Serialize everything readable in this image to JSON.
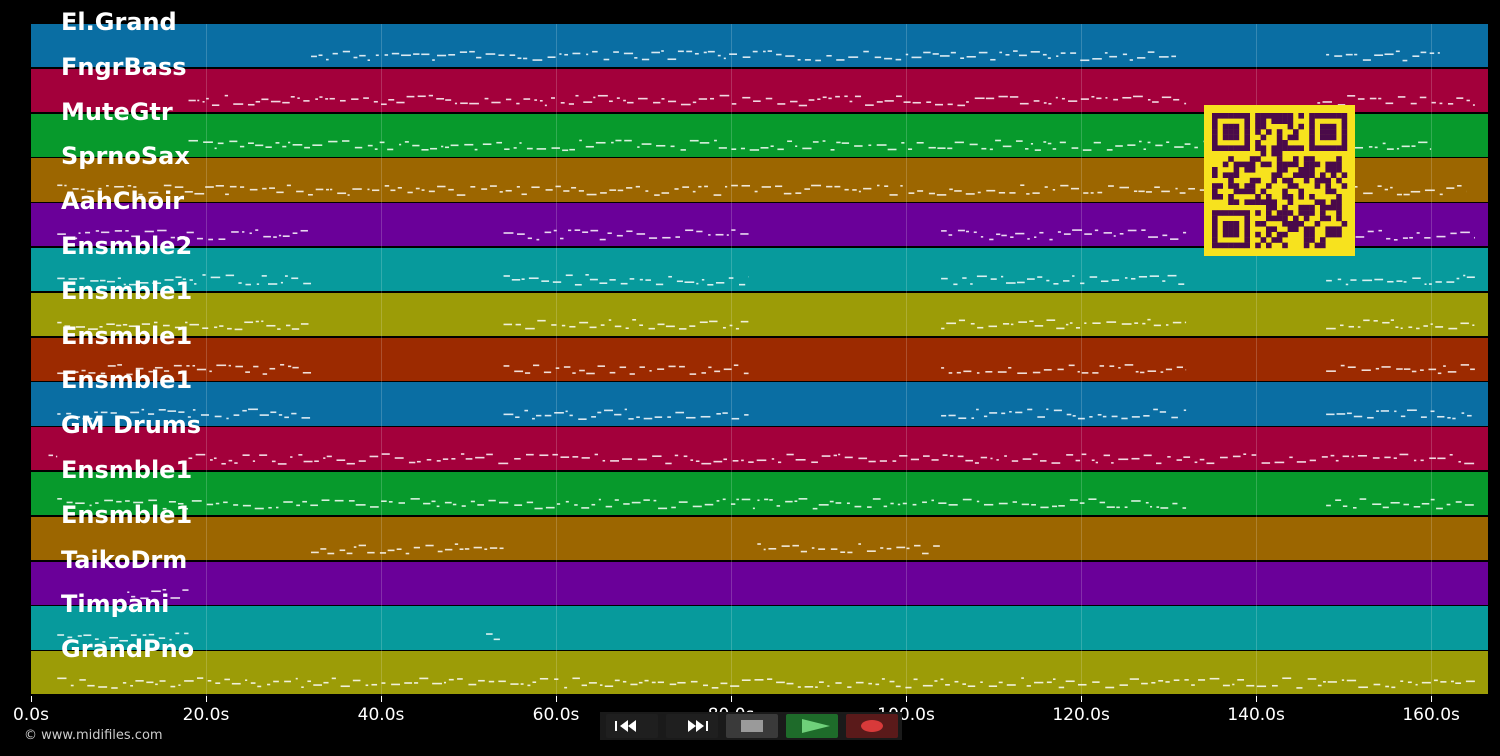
{
  "tracks": [
    {
      "name": "El.Grand",
      "color": "#0a6ea3"
    },
    {
      "name": "FngrBass",
      "color": "#a3003b"
    },
    {
      "name": "MuteGtr",
      "color": "#079a2c"
    },
    {
      "name": "SprnoSax",
      "color": "#9c6600"
    },
    {
      "name": "AahChoir",
      "color": "#6a0099"
    },
    {
      "name": "Ensmble2",
      "color": "#079a9c"
    },
    {
      "name": "Ensmble1",
      "color": "#9c9c07"
    },
    {
      "name": "Ensmble1",
      "color": "#9c2a00"
    },
    {
      "name": "Ensmble1",
      "color": "#0a6ea3"
    },
    {
      "name": "GM Drums",
      "color": "#a3003b"
    },
    {
      "name": "Ensmble1",
      "color": "#079a2c"
    },
    {
      "name": "Ensmble1",
      "color": "#9c6600"
    },
    {
      "name": "TaikoDrm",
      "color": "#6a0099"
    },
    {
      "name": "Timpani",
      "color": "#079a9c"
    },
    {
      "name": "GrandPno",
      "color": "#9c9c07"
    }
  ],
  "timeline": {
    "unit": "s",
    "min": 0,
    "max": 166.5,
    "ticks": [
      "0.0s",
      "20.0s",
      "40.0s",
      "60.0s",
      "80.0s",
      "100.0s",
      "120.0s",
      "140.0s",
      "160.0s"
    ],
    "tick_values": [
      0,
      20,
      40,
      60,
      80,
      100,
      120,
      140,
      160
    ]
  },
  "transport": {
    "buttons": [
      {
        "name": "rewind-button",
        "icon": "rewind-icon",
        "color": "#1f1f1f"
      },
      {
        "name": "fast-forward-button",
        "icon": "fast-forward-icon",
        "color": "#1f1f1f"
      },
      {
        "name": "stop-button",
        "icon": "stop-icon",
        "color": "#3a3a3a"
      },
      {
        "name": "play-button",
        "icon": "play-icon",
        "color": "#1e6b2a"
      },
      {
        "name": "record-button",
        "icon": "record-icon",
        "color": "#5a1a1a"
      }
    ]
  },
  "copyright": "© www.midifiles.com",
  "qr_code": {
    "icon": "qr-code-icon",
    "color": "#f7e21e",
    "dark": "#4a0a4a"
  }
}
